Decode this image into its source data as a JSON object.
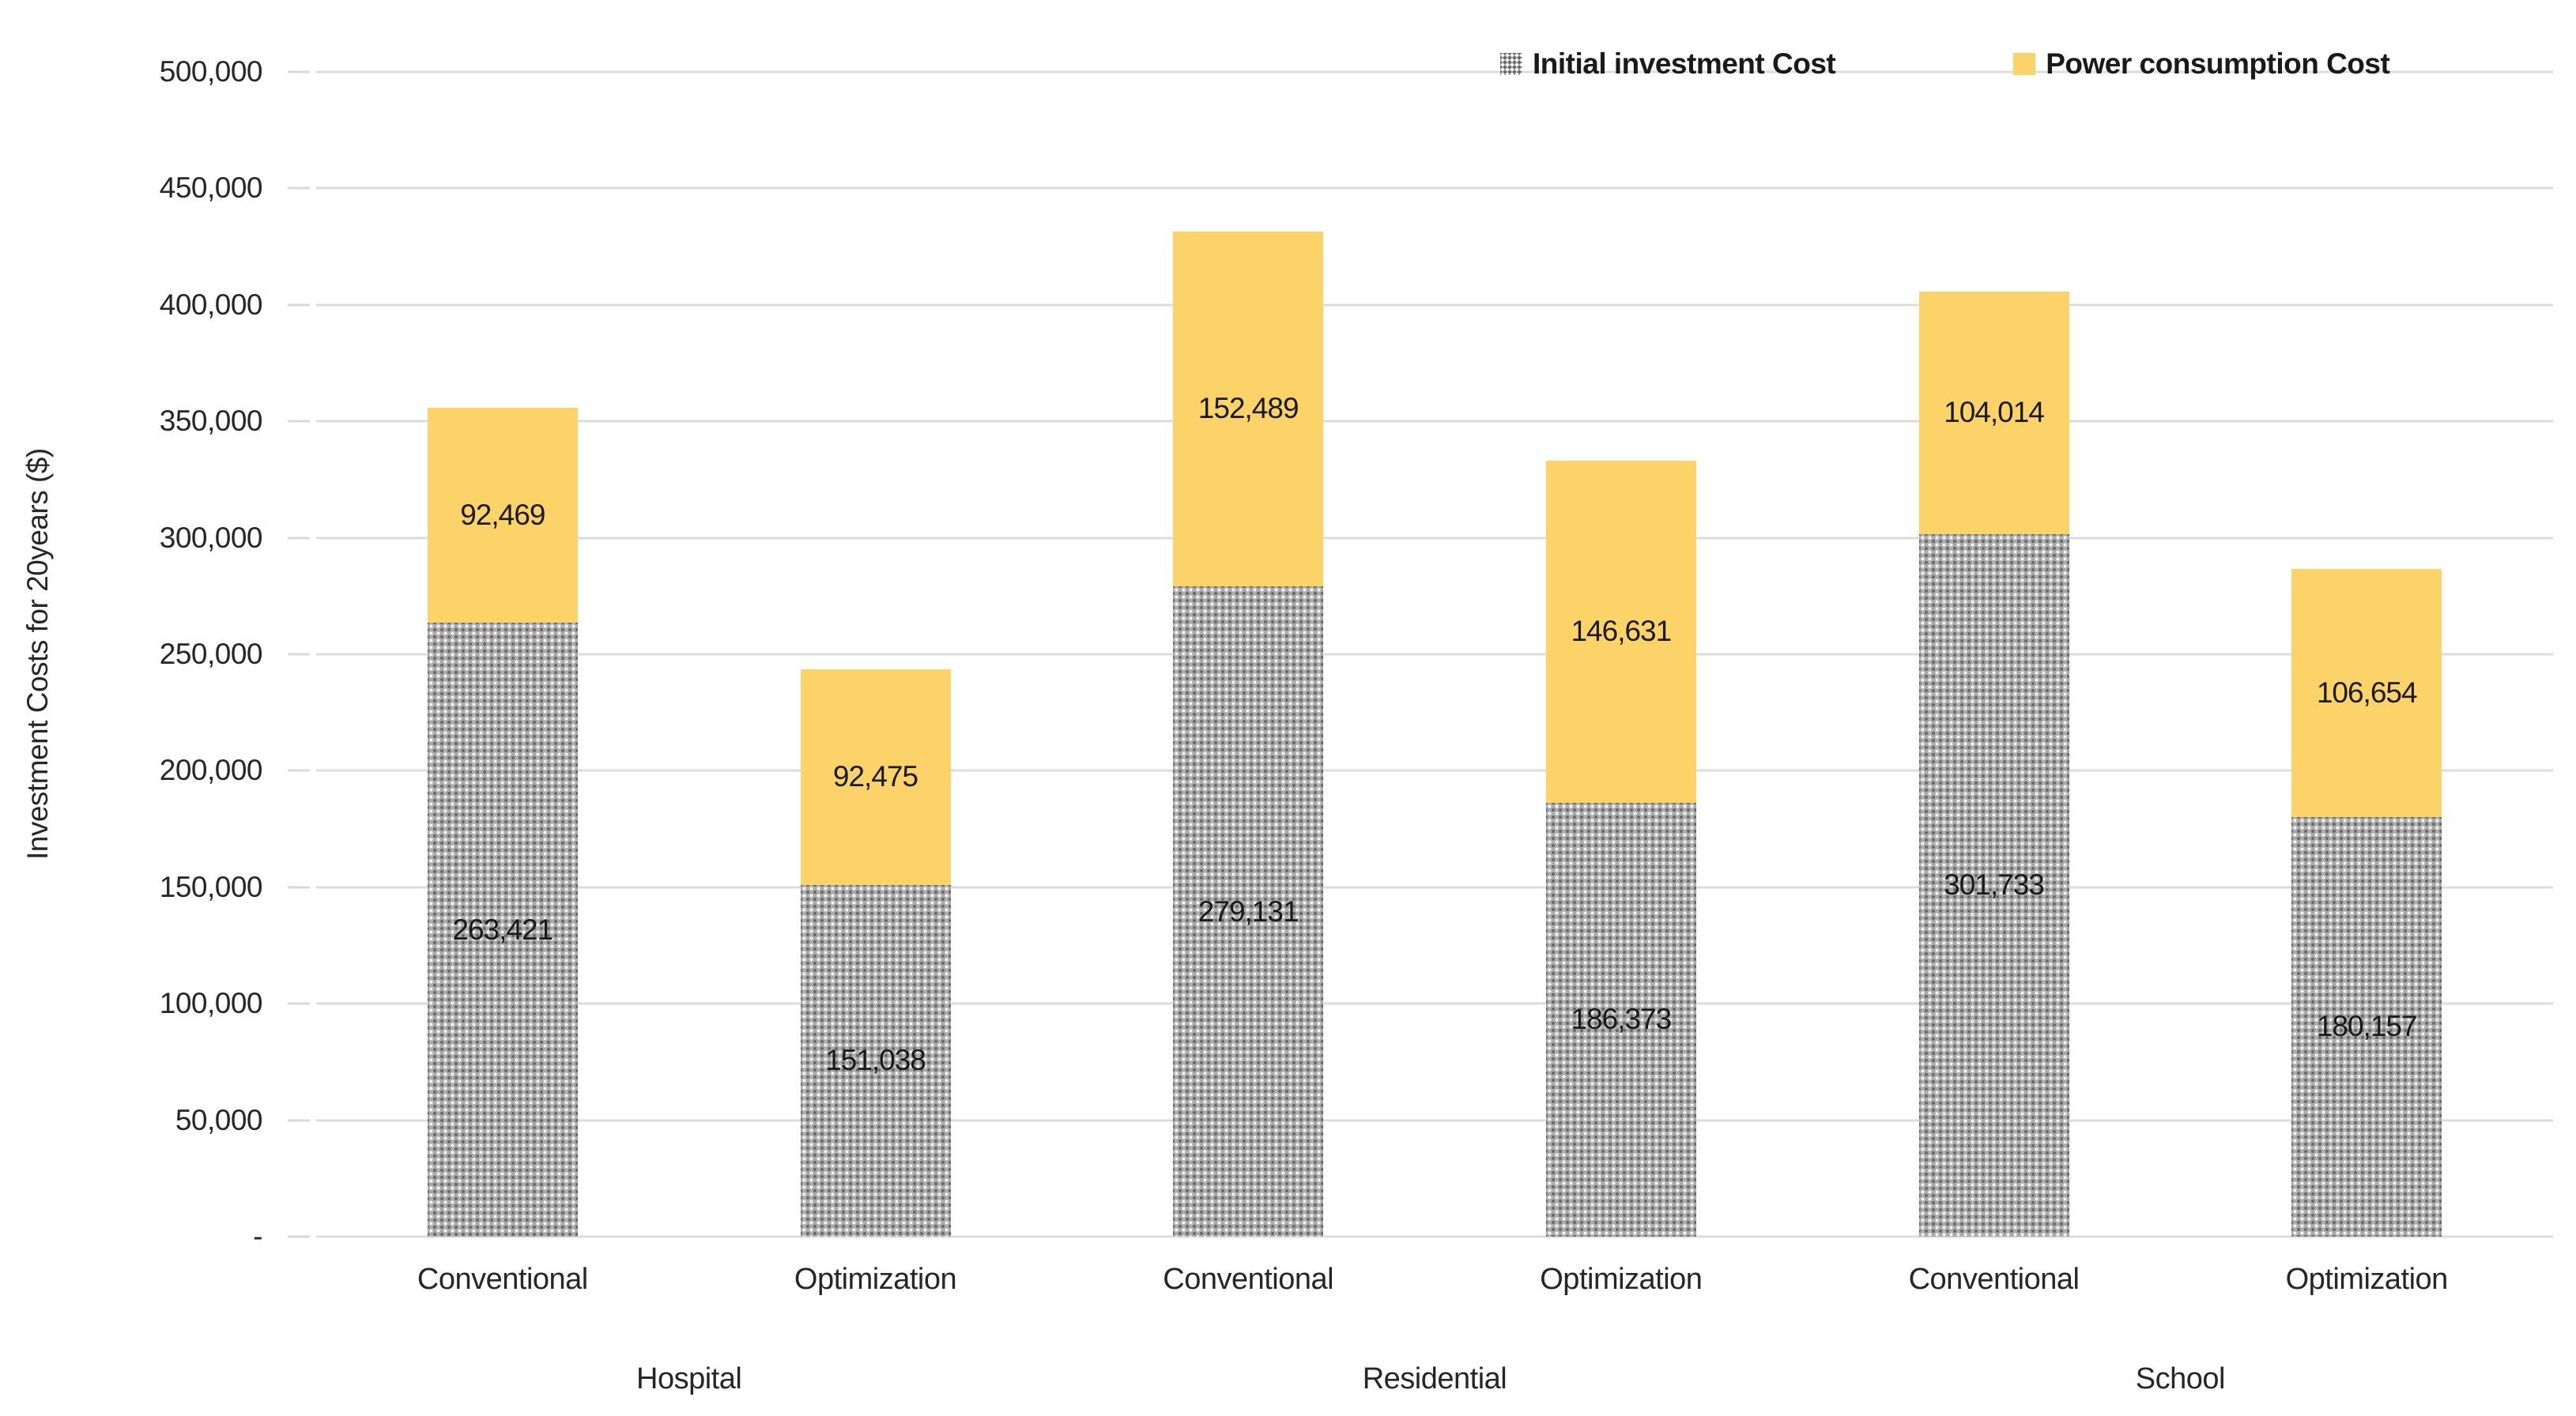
{
  "chart_data": {
    "type": "bar",
    "stacked": true,
    "title": "",
    "ylabel": "Investment Costs for 20years ($)",
    "xlabel": "",
    "ymax": 500000,
    "ytick_step": 50000,
    "grid": true,
    "legend_position": "top-right",
    "yticks": [
      {
        "value": 0,
        "label": "-"
      },
      {
        "value": 50000,
        "label": "50,000"
      },
      {
        "value": 100000,
        "label": "100,000"
      },
      {
        "value": 150000,
        "label": "150,000"
      },
      {
        "value": 200000,
        "label": "200,000"
      },
      {
        "value": 250000,
        "label": "250,000"
      },
      {
        "value": 300000,
        "label": "300,000"
      },
      {
        "value": 350000,
        "label": "350,000"
      },
      {
        "value": 400000,
        "label": "400,000"
      },
      {
        "value": 450000,
        "label": "450,000"
      },
      {
        "value": 500000,
        "label": "500,000"
      }
    ],
    "groups": [
      "Hospital",
      "Residential",
      "School"
    ],
    "categories": [
      "Conventional",
      "Optimization",
      "Conventional",
      "Optimization",
      "Conventional",
      "Optimization"
    ],
    "series": [
      {
        "name": "Initial investment Cost",
        "style": "gray-dot-pattern",
        "color": "#ABABAB",
        "values": [
          263421,
          151038,
          279131,
          186373,
          301733,
          180157
        ],
        "labels": [
          "263,421",
          "151,038",
          "279,131",
          "186,373",
          "301,733",
          "180,157"
        ]
      },
      {
        "name": "Power consumption Cost",
        "style": "solid",
        "color": "#FBD368",
        "values": [
          92469,
          92475,
          152489,
          146631,
          104014,
          106654
        ],
        "labels": [
          "92,469",
          "92,475",
          "152,489",
          "146,631",
          "104,014",
          "106,654"
        ]
      }
    ],
    "colors": {
      "gridline": "#DCDCDC",
      "tick": "#D9D9D9",
      "text": "#262626",
      "data_label": "#1A1A1A"
    }
  }
}
